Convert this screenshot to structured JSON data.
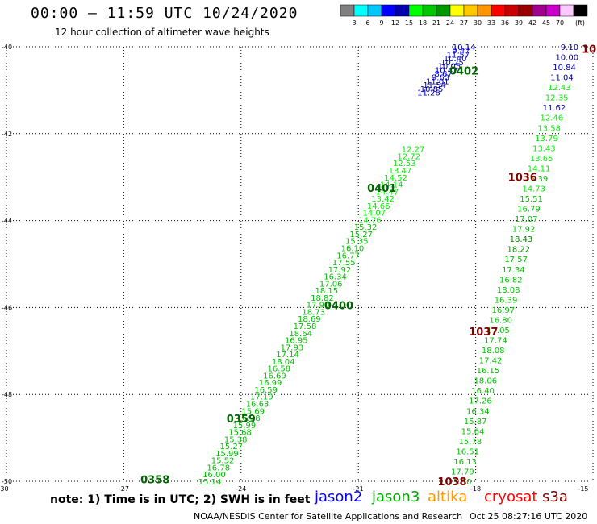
{
  "header": {
    "title": "00:00 – 11:59 UTC 10/24/2020",
    "subtitle": "12 hour collection of altimeter wave heights"
  },
  "colorbar": {
    "colors": [
      "#808080",
      "#00ffff",
      "#00c8ff",
      "#0000ff",
      "#0000b0",
      "#00ff00",
      "#00c800",
      "#009600",
      "#ffff00",
      "#ffc800",
      "#ff9600",
      "#ff0000",
      "#c80000",
      "#960000",
      "#a0008c",
      "#c800c8",
      "#ffc8ff",
      "#000000"
    ],
    "labels": [
      "3",
      "6",
      "9",
      "12",
      "15",
      "18",
      "21",
      "24",
      "27",
      "30",
      "33",
      "36",
      "39",
      "42",
      "45",
      "70"
    ],
    "unit": "(ft)"
  },
  "footer": {
    "note": "note: 1) Time is in UTC; 2) SWH is in feet",
    "satellites": [
      {
        "name": "jason2",
        "color": "#0000ff"
      },
      {
        "name": "jason3",
        "color": "#00aa00"
      },
      {
        "name": "altika",
        "color": "#ff9900"
      },
      {
        "name": "cryosat",
        "color": "#ff0000"
      },
      {
        "name": "s3a",
        "color": "#800000"
      }
    ],
    "credit": "NOAA/NESDIS Center for Satellite Applications and Research",
    "timestamp": "Oct 25 08:27:16 UTC 2020"
  },
  "chart_data": {
    "type": "scatter",
    "xlim": [
      -30,
      -15
    ],
    "ylim": [
      -50,
      -40
    ],
    "x_ticks": [
      -30,
      -27,
      -24,
      -21,
      -18,
      -15
    ],
    "y_ticks": [
      -40,
      -42,
      -44,
      -46,
      -48,
      -50
    ],
    "grid": true,
    "wave_colors": {
      "c9": "#0000ff",
      "c12": "#0000b0",
      "c15": "#00ee00",
      "c18": "#00c000",
      "c21": "#008c00",
      "cbrown": "#800000"
    },
    "time_labels": [
      {
        "text": "10",
        "lon": -15.1,
        "lat": -40.05,
        "color": "#800000"
      },
      {
        "text": "0402",
        "lon": -18.3,
        "lat": -40.55,
        "color": "#006600"
      },
      {
        "text": "0401",
        "lon": -20.4,
        "lat": -43.25,
        "color": "#006600"
      },
      {
        "text": "1036",
        "lon": -16.8,
        "lat": -43.0,
        "color": "#800000"
      },
      {
        "text": "0400",
        "lon": -21.5,
        "lat": -45.95,
        "color": "#006600"
      },
      {
        "text": "1037",
        "lon": -17.8,
        "lat": -46.55,
        "color": "#800000"
      },
      {
        "text": "0359",
        "lon": -24.0,
        "lat": -48.55,
        "color": "#006600"
      },
      {
        "text": "1038",
        "lon": -18.6,
        "lat": -50.0,
        "color": "#800000"
      },
      {
        "text": "0358",
        "lon": -26.2,
        "lat": -49.95,
        "color": "#006600"
      }
    ],
    "tracks": [
      {
        "name": "jason track A",
        "start": [
          -18.3,
          -40.0
        ],
        "end": [
          -19.2,
          -41.05
        ],
        "values": [
          "10.14",
          "9.47",
          "11.57",
          "10.40",
          "10.25",
          "10.05",
          "10.42",
          "8.67",
          "9.63",
          "11.01",
          "11.54",
          "10.85",
          "11.26"
        ],
        "colors": [
          "c12",
          "c9",
          "c12",
          "c12",
          "c12",
          "c12",
          "c12",
          "c9",
          "c9",
          "c12",
          "c12",
          "c12",
          "c12"
        ]
      },
      {
        "name": "jason track A continued",
        "start": [
          -19.6,
          -42.35
        ],
        "end": [
          -24.8,
          -50.0
        ],
        "values": [
          "12.27",
          "12.72",
          "12.53",
          "13.47",
          "14.52",
          "14.14",
          "14.47",
          "13.42",
          "14.66",
          "14.07",
          "14.76",
          "15.32",
          "15.27",
          "15.35",
          "16.10",
          "16.77",
          "17.55",
          "17.92",
          "16.34",
          "17.06",
          "18.15",
          "18.82",
          "17.90",
          "18.73",
          "18.69",
          "17.58",
          "18.64",
          "16.95",
          "17.93",
          "17.14",
          "18.04",
          "16.58",
          "16.69",
          "16.99",
          "16.59",
          "17.19",
          "16.63",
          "15.69",
          "16.38",
          "15.99",
          "15.68",
          "15.38",
          "15.27",
          "15.99",
          "15.52",
          "16.78",
          "16.00",
          "15.14"
        ],
        "colors": [
          "c15",
          "c15",
          "c15",
          "c15",
          "c15",
          "c15",
          "c15",
          "c15",
          "c15",
          "c15",
          "c15",
          "c18",
          "c18",
          "c18",
          "c18",
          "c18",
          "c18",
          "c18",
          "c18",
          "c18",
          "c18",
          "c18",
          "c18",
          "c18",
          "c18",
          "c18",
          "c18",
          "c18",
          "c18",
          "c18",
          "c18",
          "c18",
          "c18",
          "c18",
          "c18",
          "c18",
          "c18",
          "c18",
          "c18",
          "c18",
          "c18",
          "c18",
          "c18",
          "c18",
          "c18",
          "c18",
          "c18",
          "c18"
        ]
      },
      {
        "name": "jason track B",
        "start": [
          -15.6,
          -40.0
        ],
        "end": [
          -18.4,
          -50.0
        ],
        "values": [
          "9.10",
          "10.00",
          "10.84",
          "11.04",
          "12.43",
          "12.35",
          "11.62",
          "12.46",
          "13.58",
          "13.79",
          "13.43",
          "13.65",
          "14.11",
          "15.39",
          "14.73",
          "15.51",
          "16.79",
          "17.07",
          "17.92",
          "18.43",
          "18.22",
          "17.57",
          "17.34",
          "16.82",
          "18.08",
          "16.39",
          "16.97",
          "16.80",
          "17.05",
          "17.74",
          "18.08",
          "17.42",
          "16.15",
          "18.06",
          "16.40",
          "17.26",
          "16.34",
          "15.87",
          "15.64",
          "15.78",
          "16.51",
          "16.13",
          "17.79",
          "17.30"
        ],
        "colors": [
          "c12",
          "c12",
          "c12",
          "c12",
          "c15",
          "c15",
          "c12",
          "c15",
          "c15",
          "c15",
          "c15",
          "c15",
          "c15",
          "c18",
          "c15",
          "c18",
          "c18",
          "c18",
          "c18",
          "c21",
          "c21",
          "c18",
          "c18",
          "c18",
          "c18",
          "c18",
          "c18",
          "c18",
          "c18",
          "c18",
          "c18",
          "c18",
          "c18",
          "c18",
          "c18",
          "c18",
          "c18",
          "c18",
          "c18",
          "c18",
          "c18",
          "c18",
          "c18",
          "c18"
        ]
      }
    ]
  }
}
